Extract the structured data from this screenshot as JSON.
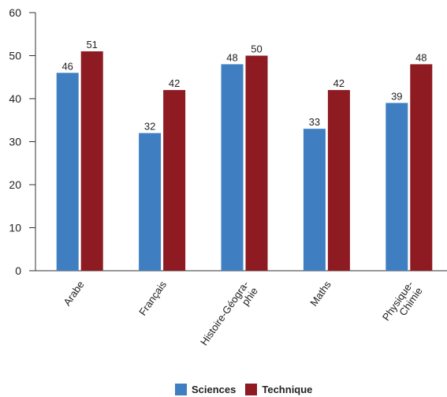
{
  "chart_data": {
    "type": "bar",
    "categories": [
      "Arabe",
      "Français",
      "Histoire-Géographie",
      "Maths",
      "Physique-Chimie"
    ],
    "category_label_lines": [
      [
        "Arabe"
      ],
      [
        "Français"
      ],
      [
        "Histoire-Géogra-",
        "phie"
      ],
      [
        "Maths"
      ],
      [
        "Physique-",
        "Chimie"
      ]
    ],
    "series": [
      {
        "name": "Sciences",
        "color": "#3f7fc1",
        "values": [
          46,
          32,
          48,
          33,
          39
        ]
      },
      {
        "name": "Technique",
        "color": "#8e1a22",
        "values": [
          51,
          42,
          50,
          42,
          48
        ]
      }
    ],
    "ylim": [
      0,
      60
    ],
    "yticks": [
      0,
      10,
      20,
      30,
      40,
      50,
      60
    ],
    "grid": false,
    "legend_position": "bottom"
  }
}
